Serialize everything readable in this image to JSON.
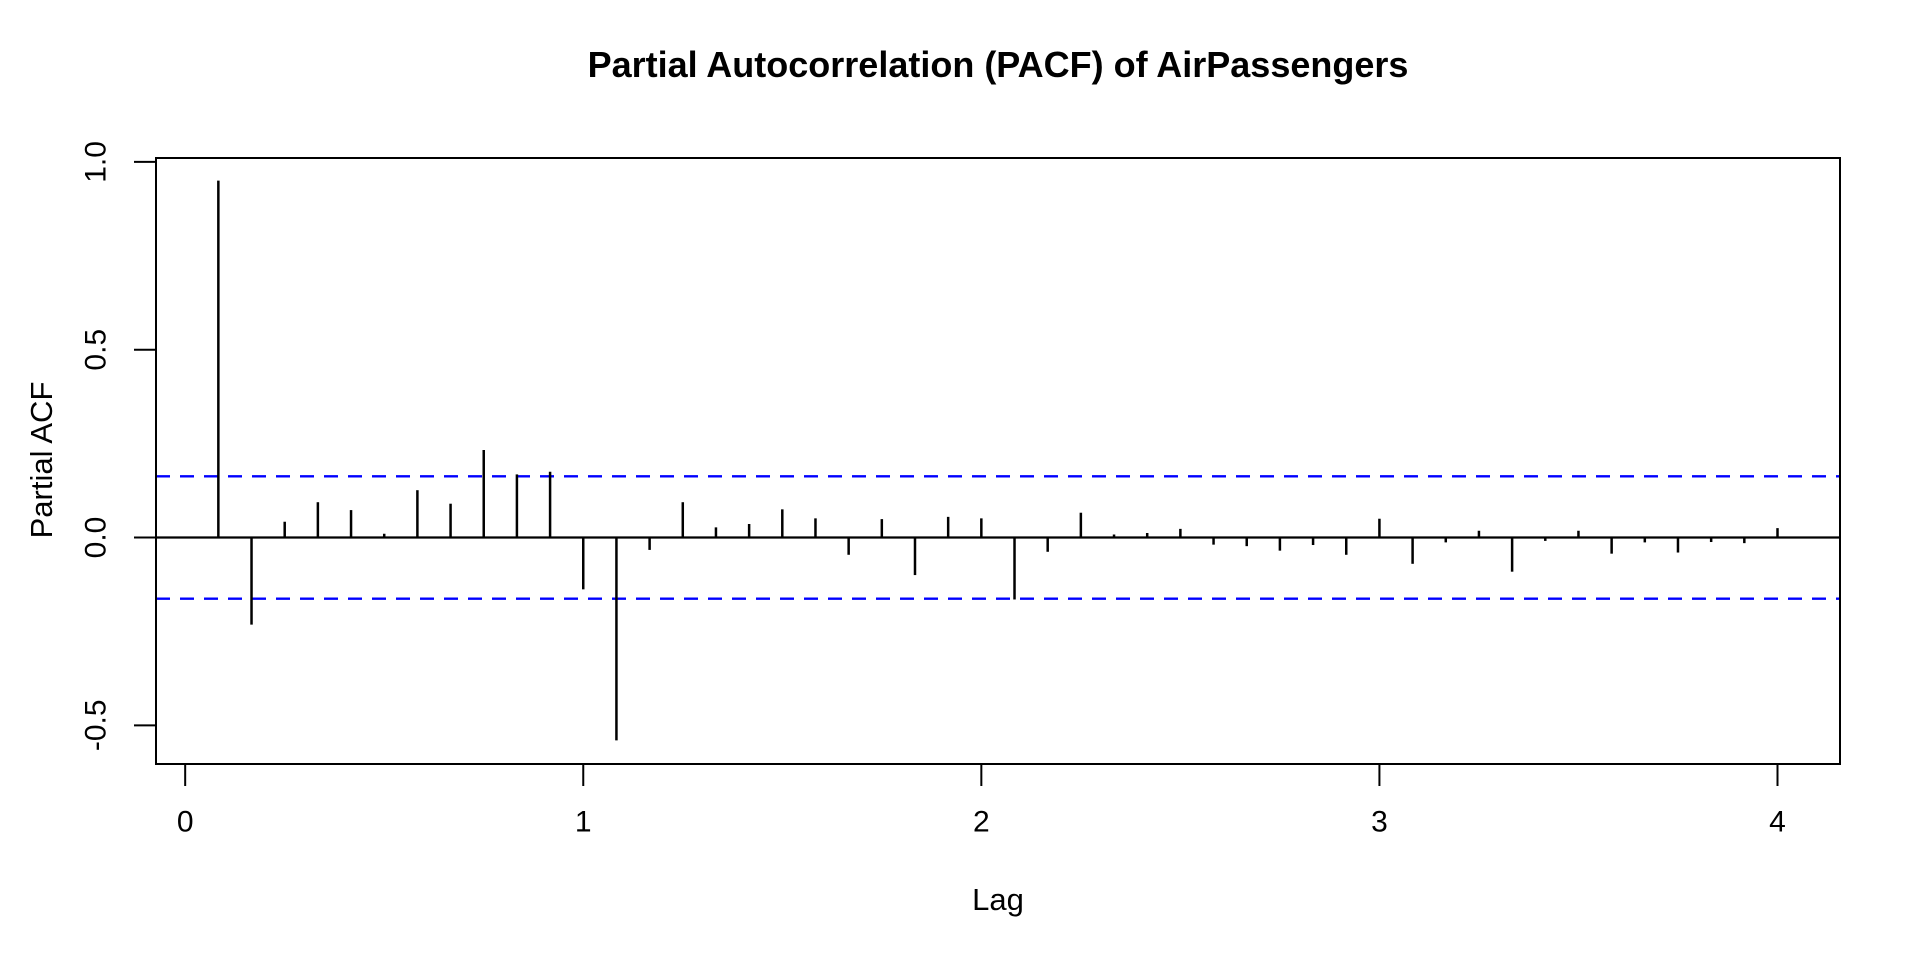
{
  "chart_data": {
    "type": "bar",
    "title": "Partial Autocorrelation (PACF) of AirPassengers",
    "xlabel": "Lag",
    "ylabel": "Partial ACF",
    "lag_unit": "years",
    "bar_lag_step_years": 0.0833333,
    "n_bars": 48,
    "values": [
      0.95,
      -0.232,
      0.042,
      0.094,
      0.073,
      0.01,
      0.126,
      0.09,
      0.233,
      0.168,
      0.175,
      -0.138,
      -0.54,
      -0.033,
      0.094,
      0.027,
      0.036,
      0.075,
      0.051,
      -0.046,
      0.049,
      -0.1,
      0.055,
      0.051,
      -0.165,
      -0.038,
      0.066,
      0.008,
      0.012,
      0.023,
      -0.019,
      -0.023,
      -0.035,
      -0.02,
      -0.046,
      0.05,
      -0.07,
      -0.013,
      0.018,
      -0.091,
      -0.009,
      0.018,
      -0.043,
      -0.013,
      -0.04,
      -0.012,
      -0.015,
      0.025
    ],
    "conf_upper": 0.163,
    "conf_lower": -0.163,
    "conf_line_style": "dashed",
    "xticks": [
      0,
      1,
      2,
      3,
      4
    ],
    "xtick_labels": [
      "0",
      "1",
      "2",
      "3",
      "4"
    ],
    "yticks": [
      1.0,
      0.5,
      0.0,
      -0.5
    ],
    "ytick_labels": [
      "1.0",
      "0.5",
      "0.0",
      "-0.5"
    ],
    "xlim": [
      -0.0733,
      4.157
    ],
    "ylim": [
      -0.603,
      1.0104
    ],
    "grid": false,
    "legend": null,
    "colors": {
      "bar": "#000000",
      "ci_line": "#0000ff",
      "axis": "#000000",
      "background": "#ffffff"
    }
  }
}
